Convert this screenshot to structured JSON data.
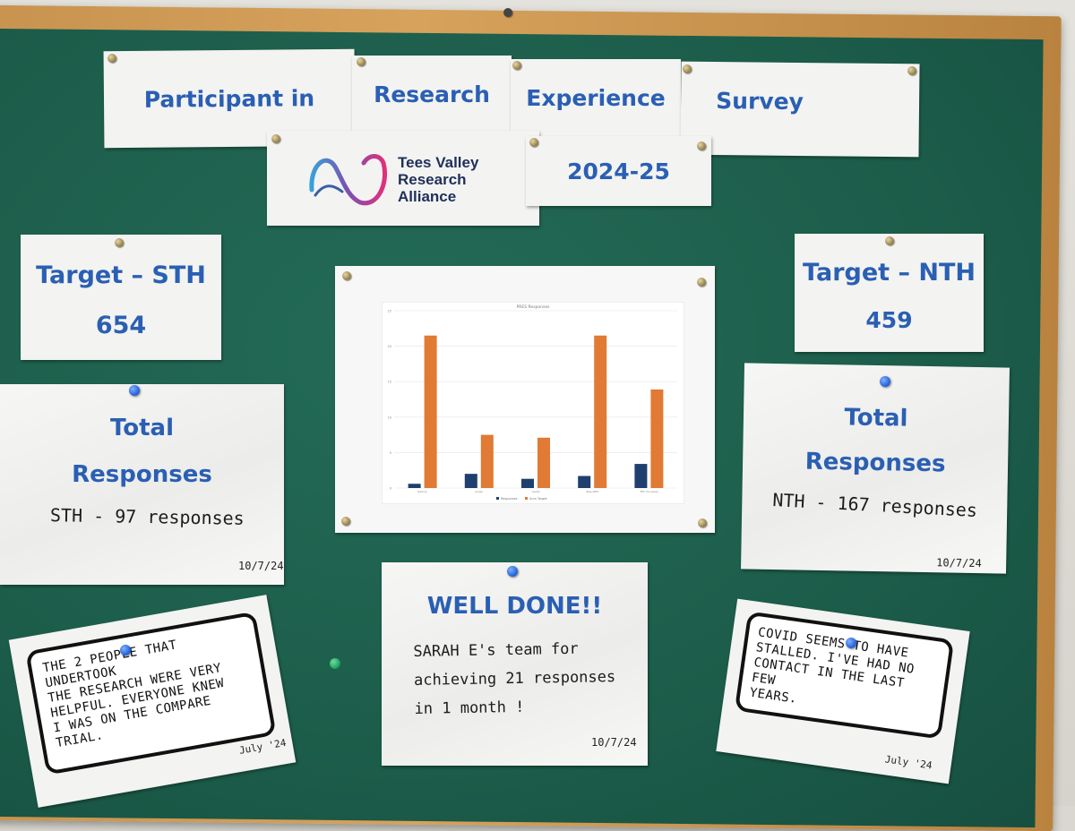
{
  "header": {
    "title_part1": "Participant in",
    "title_part2": "Research",
    "title_part3": "Experience",
    "title_part4": "Survey",
    "year": "2024-25"
  },
  "logo": {
    "line1": "Tees Valley",
    "line2": "Research",
    "line3": "Alliance"
  },
  "target_sth": {
    "label": "Target – STH",
    "value": "654"
  },
  "target_nth": {
    "label": "Target – NTH",
    "value": "459"
  },
  "total_sth": {
    "line1": "Total",
    "line2": "Responses",
    "handwritten": "STH - 97 responses",
    "date": "10/7/24"
  },
  "total_nth": {
    "line1": "Total",
    "line2": "Responses",
    "handwritten": "NTH - 167 responses",
    "date": "10/7/24"
  },
  "well_done": {
    "title": "WELL DONE!!",
    "line1": "SARAH E's team for",
    "line2": "achieving 21 responses",
    "line3": "in 1 month !",
    "date": "10/7/24"
  },
  "quote_left": {
    "line1": "The 2 people that undertook",
    "line2": "the research were very",
    "line3": "helpful. Everyone knew",
    "line4": "I was on the compare",
    "line5": "trial.",
    "date": "July '24"
  },
  "quote_right": {
    "line1": "Covid seems to have",
    "line2": "stalled. I've had no",
    "line3": "contact in the last few",
    "line4": "years.",
    "date": "July '24"
  },
  "colors": {
    "board": "#1c5d4a",
    "heading_blue": "#2a5fb3",
    "bar_responses": "#1f3f6e",
    "bar_target": "#e07a34"
  },
  "chart_data": {
    "type": "bar",
    "title": "PRES Responses",
    "categories": [
      "Redcar",
      "Green",
      "Leeds",
      "Stay-RHS",
      "TEC 24 Areas"
    ],
    "series": [
      {
        "name": "Responses",
        "values": [
          0.6,
          2.0,
          1.3,
          1.7,
          3.4
        ]
      },
      {
        "name": "Sum Target",
        "values": [
          21.5,
          7.5,
          7.1,
          21.5,
          13.9
        ]
      }
    ],
    "ylim": [
      0,
      25
    ],
    "yticks": [
      "25",
      "20",
      "15",
      "10",
      "5",
      "0"
    ],
    "grid": true,
    "legend": "bottom"
  }
}
